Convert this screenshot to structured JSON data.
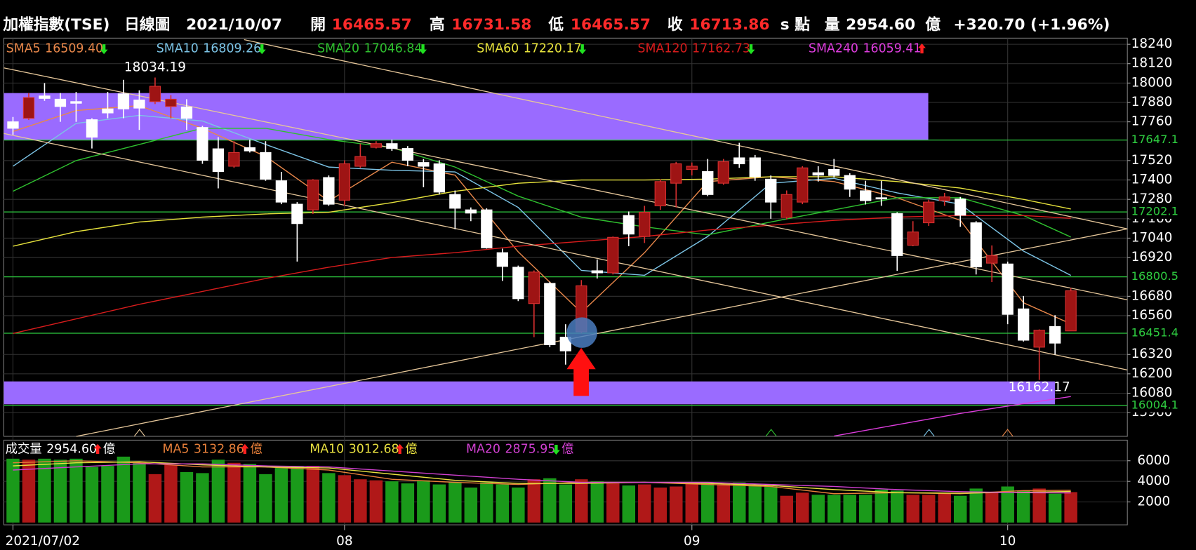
{
  "header": {
    "index_name": "加權指數(TSE)",
    "chart_kind": "日線圖",
    "date": "2021/10/07",
    "open_label": "開",
    "high_label": "高",
    "low_label": "低",
    "close_label": "收",
    "unit": "s 點",
    "volume_label": "量",
    "volume_unit": "億",
    "change": "+320.70 (+1.96%)"
  },
  "chart_data": [
    {
      "type": "candlestick",
      "open": [
        17760,
        17782,
        17920,
        17900,
        17885,
        17773,
        17840,
        17933,
        17895,
        17885,
        17855,
        17852,
        17725,
        17593,
        17485,
        17600,
        17570,
        17395,
        17250,
        17215,
        17415,
        17275,
        17485,
        17602,
        17625,
        17595,
        17508,
        17500,
        17310,
        17215,
        17215,
        16950,
        16860,
        16635,
        16760,
        16427,
        16460,
        16838,
        16825,
        17180,
        17050,
        17240,
        17380,
        17465,
        17452,
        17380,
        17537,
        17537,
        17405,
        17168,
        17263,
        17445,
        17465,
        17428,
        17333,
        17290,
        17192,
        16996,
        17135,
        17272,
        17282,
        17135,
        16885,
        16880,
        16602,
        16365,
        16493,
        16465.57
      ],
      "high": [
        17790,
        17938,
        18000,
        17938,
        17945,
        17782,
        17945,
        18020,
        17955,
        18034.19,
        17925,
        17900,
        17735,
        17665,
        17640,
        17650,
        17640,
        17450,
        17263,
        17405,
        17428,
        17522,
        17625,
        17640,
        17650,
        17610,
        17530,
        17522,
        17335,
        17230,
        17225,
        16975,
        16870,
        16840,
        16770,
        16507,
        16780,
        16908,
        17050,
        17205,
        17240,
        17405,
        17512,
        17508,
        17530,
        17530,
        17630,
        17555,
        17428,
        17335,
        17485,
        17485,
        17530,
        17442,
        17395,
        17395,
        17200,
        17145,
        17278,
        17320,
        17295,
        17145,
        16995,
        16895,
        16682,
        16475,
        16563,
        16731.58
      ],
      "low": [
        17680,
        17772,
        17890,
        17760,
        17760,
        17595,
        17782,
        17782,
        17710,
        17870,
        17782,
        17710,
        17500,
        17348,
        17475,
        17570,
        17395,
        17250,
        16895,
        17190,
        17240,
        17240,
        17475,
        17595,
        17580,
        17485,
        17355,
        17310,
        17095,
        17145,
        16975,
        16775,
        16650,
        16427,
        16365,
        16257,
        16450,
        16790,
        16815,
        16990,
        17010,
        17215,
        17230,
        17428,
        17300,
        17370,
        17475,
        17395,
        17160,
        17155,
        17250,
        17390,
        17415,
        17295,
        17248,
        17240,
        16838,
        16990,
        17116,
        17240,
        17110,
        16815,
        16768,
        16507,
        16400,
        16162.17,
        16318,
        16465.57
      ],
      "close": [
        17720,
        17910,
        17905,
        17855,
        17875,
        17665,
        17815,
        17840,
        17845,
        17980,
        17900,
        17782,
        17522,
        17452,
        17570,
        17580,
        17405,
        17263,
        17130,
        17400,
        17250,
        17500,
        17545,
        17625,
        17595,
        17522,
        17485,
        17325,
        17225,
        17195,
        16980,
        16865,
        16665,
        16830,
        16380,
        16342,
        16745,
        16825,
        17045,
        17065,
        17200,
        17390,
        17500,
        17485,
        17310,
        17513,
        17500,
        17420,
        17263,
        17310,
        17475,
        17430,
        17428,
        17343,
        17272,
        17285,
        16932,
        17078,
        17263,
        17295,
        17182,
        16862,
        16932,
        16568,
        16408,
        16470,
        16390,
        16713.86
      ],
      "up_color": "#9e1414",
      "down_color": "#ffffff",
      "ylim": [
        15813,
        18278
      ],
      "yticks": [
        18240,
        18120,
        18000,
        17880,
        17760,
        17520,
        17400,
        17280,
        17160,
        17040,
        16920,
        16680,
        16560,
        16320,
        16200,
        16080,
        15960
      ],
      "xticks": [
        {
          "value": 0,
          "label": "2021/07/02"
        },
        {
          "value": 21,
          "label": "08"
        },
        {
          "value": 43,
          "label": "09"
        },
        {
          "value": 63,
          "label": "10"
        }
      ],
      "grid": true,
      "levels": [
        17647.1,
        17202.1,
        16800.5,
        16451.4,
        16004.1
      ],
      "level_color": "#2ecc40",
      "series": [
        {
          "name": "SMA5",
          "value_label": "16509.40",
          "trend": "down",
          "color": "#e8874a",
          "x": [
            0,
            4,
            8,
            12,
            16,
            20,
            24,
            28,
            32,
            36,
            40,
            44,
            48,
            52,
            56,
            60,
            64,
            67
          ],
          "values": [
            17700,
            17830,
            17860,
            17720,
            17546,
            17270,
            17510,
            17430,
            16955,
            16580,
            16950,
            17390,
            17420,
            17390,
            17290,
            17150,
            16640,
            16509.4
          ]
        },
        {
          "name": "SMA10",
          "value_label": "16809.26",
          "trend": "down",
          "color": "#7cc4e6",
          "x": [
            0,
            4,
            8,
            12,
            16,
            20,
            24,
            28,
            32,
            36,
            40,
            44,
            48,
            52,
            56,
            60,
            64,
            67
          ],
          "values": [
            17485,
            17750,
            17800,
            17765,
            17620,
            17480,
            17460,
            17450,
            17230,
            16840,
            16810,
            17050,
            17380,
            17410,
            17320,
            17250,
            16960,
            16809.26
          ]
        },
        {
          "name": "SMA20",
          "value_label": "17046.84",
          "trend": "down",
          "color": "#2fc02f",
          "x": [
            0,
            4,
            8,
            12,
            16,
            20,
            24,
            28,
            32,
            36,
            40,
            44,
            48,
            52,
            56,
            60,
            64,
            67
          ],
          "values": [
            17330,
            17520,
            17620,
            17720,
            17720,
            17650,
            17600,
            17480,
            17300,
            17170,
            17110,
            17060,
            17140,
            17215,
            17290,
            17290,
            17180,
            17046.84
          ]
        },
        {
          "name": "SMA60",
          "value_label": "17220.17",
          "trend": "down",
          "color": "#e6e23c",
          "x": [
            0,
            4,
            8,
            12,
            16,
            20,
            24,
            28,
            32,
            36,
            40,
            44,
            48,
            52,
            56,
            60,
            64,
            67
          ],
          "values": [
            16990,
            17080,
            17140,
            17170,
            17190,
            17200,
            17260,
            17330,
            17380,
            17400,
            17400,
            17405,
            17420,
            17420,
            17390,
            17350,
            17280,
            17220.17
          ]
        },
        {
          "name": "SMA120",
          "value_label": "17162.73",
          "trend": "down",
          "color": "#d81c1c",
          "x": [
            0,
            4,
            8,
            12,
            16,
            20,
            24,
            28,
            32,
            36,
            40,
            44,
            48,
            52,
            56,
            60,
            64,
            67
          ],
          "values": [
            16450,
            16540,
            16630,
            16710,
            16790,
            16860,
            16920,
            16950,
            16990,
            17020,
            17050,
            17090,
            17120,
            17150,
            17170,
            17180,
            17180,
            17162.73
          ]
        },
        {
          "name": "SMA240",
          "value_label": "16059.41",
          "trend": "up",
          "color": "#dd3ddd",
          "x": [
            0,
            4,
            8,
            12,
            16,
            20,
            24,
            28,
            32,
            36,
            40,
            44,
            48,
            52,
            56,
            60,
            64,
            67
          ],
          "values": [
            null,
            null,
            null,
            null,
            null,
            null,
            null,
            null,
            null,
            null,
            null,
            null,
            null,
            15815,
            15885,
            15955,
            16015,
            16059.41
          ]
        }
      ]
    },
    {
      "type": "bar",
      "title": "成交量",
      "value_label": "2954.60",
      "trend": "up",
      "unit": "億",
      "values": [
        6200,
        6100,
        6200,
        6100,
        6200,
        5400,
        5500,
        6400,
        5800,
        4700,
        5600,
        4900,
        4800,
        6100,
        5800,
        5700,
        4700,
        5300,
        5500,
        5500,
        4800,
        4600,
        4200,
        4100,
        4000,
        3800,
        4100,
        3700,
        3900,
        3400,
        3900,
        3700,
        3400,
        4200,
        4300,
        3700,
        4200,
        4000,
        3800,
        3600,
        3700,
        3400,
        3500,
        3800,
        3900,
        3700,
        3900,
        3700,
        3500,
        2600,
        2900,
        2700,
        2700,
        2700,
        2700,
        3200,
        3100,
        2700,
        2700,
        2800,
        2600,
        3300,
        2900,
        3500,
        3100,
        3300,
        2800,
        2954.6
      ],
      "up_color": "#b01818",
      "down_color": "#1a9a1a",
      "ylim": [
        0,
        8000
      ],
      "yticks": [
        6000,
        4000,
        2000
      ],
      "series": [
        {
          "name": "MA5",
          "value_label": "3132.86",
          "trend": "up",
          "color": "#e8803a",
          "x": [
            0,
            4,
            8,
            12,
            16,
            20,
            24,
            28,
            32,
            36,
            40,
            44,
            48,
            52,
            56,
            60,
            64,
            67
          ],
          "values": [
            5800,
            6000,
            5800,
            5400,
            5400,
            5100,
            4200,
            3900,
            3700,
            3900,
            3900,
            3700,
            3500,
            2800,
            2900,
            2800,
            3100,
            3132.86
          ]
        },
        {
          "name": "MA10",
          "value_label": "3012.68",
          "trend": "up",
          "color": "#e8e040",
          "x": [
            0,
            4,
            8,
            12,
            16,
            20,
            24,
            28,
            32,
            36,
            40,
            44,
            48,
            52,
            56,
            60,
            64,
            67
          ],
          "values": [
            5500,
            5800,
            5900,
            5600,
            5400,
            5300,
            4700,
            4100,
            3800,
            3800,
            3900,
            3800,
            3600,
            3200,
            2900,
            2850,
            2950,
            3012.68
          ]
        },
        {
          "name": "MA20",
          "value_label": "2875.95",
          "trend": "down",
          "color": "#d040d0",
          "x": [
            0,
            4,
            8,
            12,
            16,
            20,
            24,
            28,
            32,
            36,
            40,
            44,
            48,
            52,
            56,
            60,
            64,
            67
          ],
          "values": [
            5100,
            5400,
            5700,
            5700,
            5500,
            5400,
            5000,
            4600,
            4200,
            3900,
            3900,
            3900,
            3700,
            3500,
            3200,
            3000,
            2900,
            2875.95
          ]
        }
      ]
    }
  ]
}
